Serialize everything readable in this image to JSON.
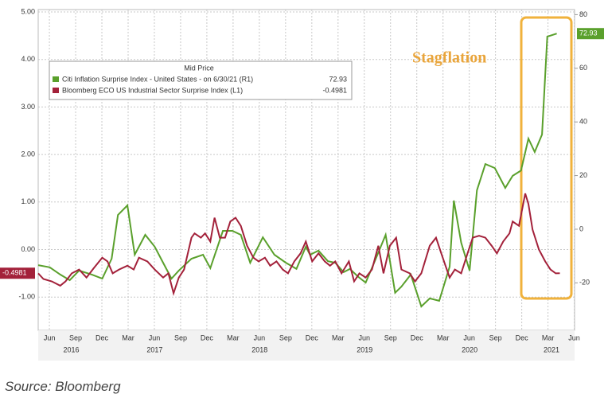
{
  "chart_data": {
    "type": "line",
    "annotation": "Stagflation",
    "legend_title": "Mid Price",
    "source": "Source: Bloomberg",
    "xlim": [
      2016.31,
      2021.42
    ],
    "xticks": [
      {
        "value": 2016.4167,
        "label": "Jun"
      },
      {
        "value": 2016.6667,
        "label": "Sep"
      },
      {
        "value": 2016.9167,
        "label": "Dec"
      },
      {
        "value": 2017.1667,
        "label": "Mar"
      },
      {
        "value": 2017.4167,
        "label": "Jun"
      },
      {
        "value": 2017.6667,
        "label": "Sep"
      },
      {
        "value": 2017.9167,
        "label": "Dec"
      },
      {
        "value": 2018.1667,
        "label": "Mar"
      },
      {
        "value": 2018.4167,
        "label": "Jun"
      },
      {
        "value": 2018.6667,
        "label": "Sep"
      },
      {
        "value": 2018.9167,
        "label": "Dec"
      },
      {
        "value": 2019.1667,
        "label": "Mar"
      },
      {
        "value": 2019.4167,
        "label": "Jun"
      },
      {
        "value": 2019.6667,
        "label": "Sep"
      },
      {
        "value": 2019.9167,
        "label": "Dec"
      },
      {
        "value": 2020.1667,
        "label": "Mar"
      },
      {
        "value": 2020.4167,
        "label": "Jun"
      },
      {
        "value": 2020.6667,
        "label": "Sep"
      },
      {
        "value": 2020.9167,
        "label": "Dec"
      },
      {
        "value": 2021.1667,
        "label": "Mar"
      },
      {
        "value": 2021.4167,
        "label": "Jun"
      }
    ],
    "year_labels": [
      {
        "value": 2016.625,
        "label": "2016"
      },
      {
        "value": 2017.42,
        "label": "2017"
      },
      {
        "value": 2018.42,
        "label": "2018"
      },
      {
        "value": 2019.42,
        "label": "2019"
      },
      {
        "value": 2020.42,
        "label": "2020"
      },
      {
        "value": 2021.2,
        "label": "2021"
      }
    ],
    "ylim": [
      -1.7,
      5.05
    ],
    "yticks": [
      {
        "value": 5,
        "label": "5.00"
      },
      {
        "value": 4,
        "label": "4.00"
      },
      {
        "value": 3,
        "label": "3.00"
      },
      {
        "value": 2,
        "label": "2.00"
      },
      {
        "value": 1,
        "label": "1.00"
      },
      {
        "value": 0,
        "label": "0.00"
      },
      {
        "value": -1,
        "label": "-1.00"
      }
    ],
    "y2lim": [
      -37.7,
      81.9
    ],
    "y2ticks": [
      80,
      60,
      40,
      20,
      0,
      -20
    ],
    "grid": true,
    "series": [
      {
        "name": "Citi Inflation Surprise Index - United States - on 6/30/21 (R1)",
        "color": "#5aa02c",
        "axis": "y2",
        "x": [
          2016.31,
          2016.42,
          2016.52,
          2016.61,
          2016.7,
          2016.82,
          2016.92,
          2017.01,
          2017.07,
          2017.16,
          2017.23,
          2017.33,
          2017.42,
          2017.5,
          2017.58,
          2017.65,
          2017.77,
          2017.88,
          2017.95,
          2018.07,
          2018.16,
          2018.24,
          2018.33,
          2018.45,
          2018.56,
          2018.67,
          2018.77,
          2018.86,
          2018.9,
          2018.98,
          2019.07,
          2019.14,
          2019.22,
          2019.28,
          2019.36,
          2019.43,
          2019.51,
          2019.62,
          2019.71,
          2019.77,
          2019.86,
          2019.96,
          2020.04,
          2020.13,
          2020.23,
          2020.27,
          2020.34,
          2020.42,
          2020.49,
          2020.57,
          2020.66,
          2020.76,
          2020.83,
          2020.91,
          2020.98,
          2021.04,
          2021.11,
          2021.16,
          2021.25
        ],
        "values": [
          -13.4,
          -14.2,
          -16.9,
          -19.0,
          -15.4,
          -16.9,
          -18.4,
          -11.0,
          5.3,
          8.9,
          -9.5,
          -2.1,
          -6.5,
          -12.5,
          -18.4,
          -15.4,
          -11.0,
          -9.5,
          -14.5,
          -0.6,
          -0.6,
          -2.1,
          -12.5,
          -3.0,
          -9.5,
          -12.5,
          -14.8,
          -6.5,
          -9.5,
          -8.0,
          -11.9,
          -12.5,
          -16.0,
          -14.8,
          -17.8,
          -19.9,
          -12.5,
          -2.1,
          -23.7,
          -21.4,
          -16.9,
          -28.8,
          -25.8,
          -26.7,
          -14.0,
          10.7,
          -5.0,
          -15.4,
          14.5,
          24.3,
          22.8,
          15.4,
          19.9,
          21.9,
          33.8,
          28.8,
          35.3,
          71.8,
          72.93
        ]
      },
      {
        "name": "Bloomberg ECO US Industrial Sector Surprise Index (L1)",
        "color": "#a3213a",
        "axis": "y",
        "x": [
          2016.31,
          2016.36,
          2016.44,
          2016.52,
          2016.57,
          2016.63,
          2016.7,
          2016.77,
          2016.84,
          2016.92,
          2016.97,
          2017.02,
          2017.08,
          2017.16,
          2017.22,
          2017.27,
          2017.35,
          2017.42,
          2017.5,
          2017.55,
          2017.6,
          2017.65,
          2017.7,
          2017.77,
          2017.8,
          2017.86,
          2017.9,
          2017.95,
          2017.99,
          2018.04,
          2018.09,
          2018.14,
          2018.19,
          2018.24,
          2018.3,
          2018.36,
          2018.41,
          2018.47,
          2018.52,
          2018.58,
          2018.64,
          2018.69,
          2018.75,
          2018.81,
          2018.86,
          2018.92,
          2018.98,
          2019.04,
          2019.09,
          2019.14,
          2019.2,
          2019.27,
          2019.32,
          2019.37,
          2019.43,
          2019.49,
          2019.55,
          2019.6,
          2019.66,
          2019.72,
          2019.77,
          2019.85,
          2019.9,
          2019.96,
          2020.04,
          2020.1,
          2020.15,
          2020.19,
          2020.23,
          2020.28,
          2020.34,
          2020.4,
          2020.45,
          2020.51,
          2020.57,
          2020.63,
          2020.68,
          2020.74,
          2020.8,
          2020.83,
          2020.89,
          2020.95,
          2020.98,
          2021.02,
          2021.08,
          2021.14,
          2021.19,
          2021.24,
          2021.28
        ],
        "values": [
          -0.5,
          -0.62,
          -0.67,
          -0.76,
          -0.67,
          -0.5,
          -0.42,
          -0.59,
          -0.39,
          -0.17,
          -0.25,
          -0.5,
          -0.42,
          -0.34,
          -0.42,
          -0.17,
          -0.25,
          -0.42,
          -0.59,
          -0.5,
          -0.92,
          -0.59,
          -0.42,
          0.25,
          0.34,
          0.25,
          0.34,
          0.17,
          0.67,
          0.25,
          0.25,
          0.59,
          0.67,
          0.5,
          0.08,
          -0.17,
          -0.25,
          -0.17,
          -0.34,
          -0.25,
          -0.42,
          -0.5,
          -0.25,
          -0.08,
          0.17,
          -0.25,
          -0.08,
          -0.25,
          -0.34,
          -0.25,
          -0.5,
          -0.25,
          -0.67,
          -0.5,
          -0.59,
          -0.42,
          0.08,
          -0.5,
          0.08,
          0.25,
          -0.42,
          -0.5,
          -0.67,
          -0.5,
          0.08,
          0.25,
          -0.08,
          -0.34,
          -0.59,
          -0.42,
          -0.5,
          -0.08,
          0.25,
          0.29,
          0.25,
          0.08,
          -0.08,
          0.17,
          0.34,
          0.59,
          0.5,
          1.18,
          0.96,
          0.42,
          0,
          -0.25,
          -0.42,
          -0.5,
          -0.4981
        ]
      }
    ]
  }
}
